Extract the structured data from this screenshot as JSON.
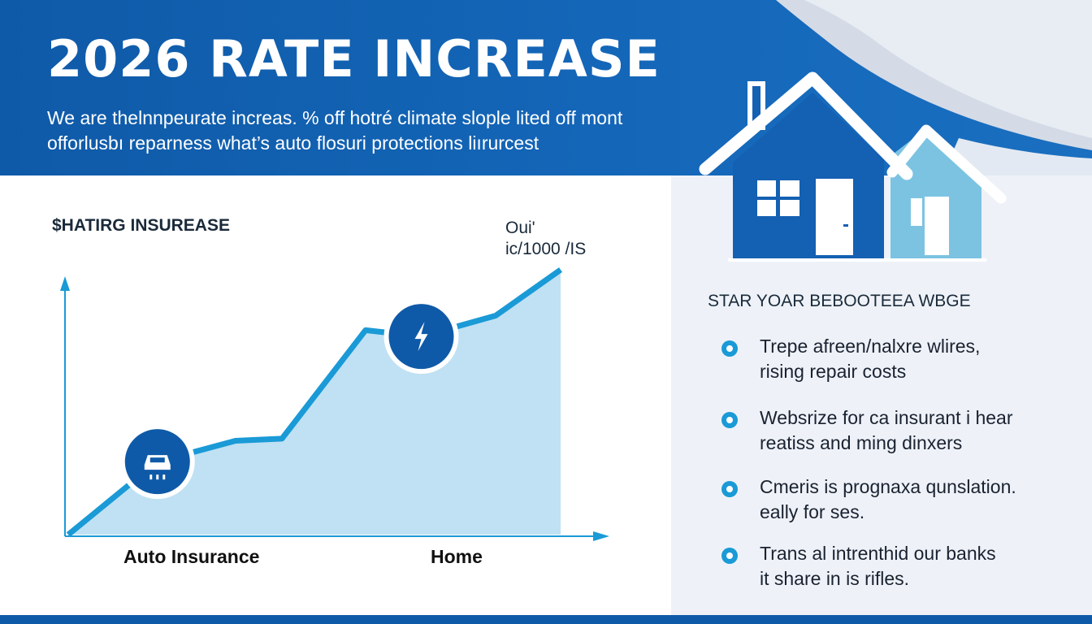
{
  "header": {
    "title": "2026 RATE INCREASE",
    "subtitle_lines": [
      "We are thelnnpeurate increas. % off hotré climate slople lited off mont",
      "offorlusbı reparness what’s auto flosuri protections liırurcest"
    ]
  },
  "chart_data": {
    "type": "area",
    "title": "$HATIRG INSUREASE",
    "annotation_lines": [
      "Oui'",
      "ic/1000 /IS"
    ],
    "categories": [
      "Auto Insurance",
      "Home"
    ],
    "x": [
      0,
      0.48,
      0.9,
      1.15,
      1.6,
      1.9,
      2.3,
      2.65
    ],
    "y": [
      0,
      0.35,
      0.45,
      0.46,
      0.98,
      0.95,
      1.05,
      1.27
    ],
    "xlim": [
      0,
      2.65
    ],
    "ylim": [
      0,
      1.27
    ],
    "markers": [
      {
        "x": 0.48,
        "y": 0.35,
        "icon": "car-icon"
      },
      {
        "x": 1.9,
        "y": 0.95,
        "icon": "lightning-icon"
      }
    ],
    "xlabel": "",
    "ylabel": "",
    "grid": false,
    "colors": {
      "line": "#1a9ad6",
      "fill": "#bfe1f3",
      "marker": "#0f5aa8"
    }
  },
  "right_panel": {
    "title": "STAR YOAR BEBOOTEEA WBGE",
    "bullets": [
      {
        "lines": [
          "Trepe afreen/nalxre wlires,",
          "rising repair costs"
        ]
      },
      {
        "lines": [
          "Websrize for ca insurant i hear",
          "reatiss and ming dinxers"
        ]
      },
      {
        "lines": [
          "Cmeris is prognaxa qunslation.",
          "eally for ses."
        ]
      },
      {
        "lines": [
          "Trans al intrenthid our banks",
          "it share in is rifles."
        ]
      }
    ]
  },
  "colors": {
    "brand_blue": "#0f5aa8",
    "accent_cyan": "#1a9ad6",
    "light_blue": "#6fbfe0",
    "panel_bg": "#eef2f8"
  },
  "icons": [
    "house-icon",
    "car-icon",
    "lightning-icon"
  ]
}
